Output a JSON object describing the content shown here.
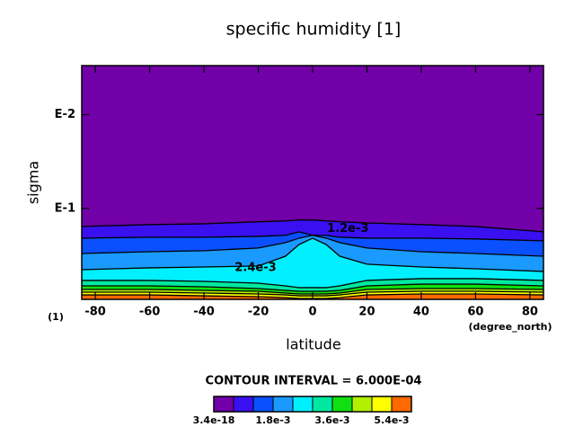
{
  "chart_data": {
    "type": "contour",
    "title": "specific humidity [1]",
    "x_label": "latitude",
    "y_label": "sigma",
    "x_unit": "(degree_north)",
    "y_unit": "(1)",
    "xlim": [
      -85,
      85
    ],
    "xticks": [
      -80,
      -60,
      -40,
      -20,
      0,
      20,
      40,
      60,
      80
    ],
    "ylim": [
      0.935,
      0.003
    ],
    "ylog": true,
    "yticks": [
      {
        "value": 0.01,
        "label": "E-2"
      },
      {
        "value": 0.1,
        "label": "E-1"
      }
    ],
    "x": [
      -85,
      -60,
      -40,
      -20,
      -10,
      -5,
      0,
      5,
      10,
      20,
      40,
      60,
      85
    ],
    "contours": [
      {
        "level": 0.0006,
        "values": [
          0.156,
          0.149,
          0.146,
          0.139,
          0.136,
          0.133,
          0.133,
          0.136,
          0.139,
          0.143,
          0.149,
          0.156,
          0.178
        ]
      },
      {
        "level": 0.0012,
        "values": [
          0.208,
          0.203,
          0.203,
          0.199,
          0.194,
          0.178,
          0.194,
          0.194,
          0.203,
          0.208,
          0.208,
          0.212,
          0.222
        ]
      },
      {
        "level": 0.0018,
        "values": [
          0.303,
          0.29,
          0.283,
          0.265,
          0.232,
          0.208,
          0.194,
          0.208,
          0.232,
          0.265,
          0.29,
          0.303,
          0.324
        ]
      },
      {
        "level": 0.0024,
        "values": [
          0.451,
          0.431,
          0.422,
          0.412,
          0.324,
          0.243,
          0.208,
          0.243,
          0.324,
          0.394,
          0.422,
          0.441,
          0.471
        ]
      },
      {
        "level": 0.003,
        "values": [
          0.587,
          0.587,
          0.601,
          0.628,
          0.671,
          0.701,
          0.701,
          0.701,
          0.671,
          0.587,
          0.562,
          0.562,
          0.587
        ]
      },
      {
        "level": 0.0036,
        "values": [
          0.671,
          0.671,
          0.686,
          0.717,
          0.75,
          0.767,
          0.767,
          0.767,
          0.75,
          0.671,
          0.643,
          0.643,
          0.671
        ]
      },
      {
        "level": 0.0042,
        "values": [
          0.733,
          0.733,
          0.75,
          0.767,
          0.801,
          0.819,
          0.819,
          0.819,
          0.801,
          0.733,
          0.717,
          0.717,
          0.733
        ]
      },
      {
        "level": 0.0048,
        "values": [
          0.784,
          0.784,
          0.801,
          0.819,
          0.838,
          0.857,
          0.857,
          0.857,
          0.838,
          0.784,
          0.767,
          0.767,
          0.784
        ]
      },
      {
        "level": 0.0054,
        "values": [
          0.838,
          0.838,
          0.857,
          0.875,
          0.895,
          0.916,
          0.916,
          0.916,
          0.895,
          0.838,
          0.819,
          0.819,
          0.838
        ]
      }
    ],
    "contour_labels": [
      {
        "text": "1.2e-3",
        "x": 13,
        "y": 0.166
      },
      {
        "text": "2.4e-3",
        "x": -21,
        "y": 0.431
      }
    ],
    "contour_interval_label": "CONTOUR INTERVAL = 6.000E-04",
    "colorbar": {
      "levels": [
        3.4e-18,
        0.0006,
        0.0012,
        0.0018,
        0.0024,
        0.003,
        0.0036,
        0.0042,
        0.0048,
        0.0054,
        0.006
      ],
      "colors": [
        "#7200a8",
        "#3a10f0",
        "#0a50ff",
        "#1a9aff",
        "#00f0ff",
        "#00e8a0",
        "#10e010",
        "#b0f000",
        "#ffff00",
        "#ff6a00"
      ],
      "ticks": [
        3.4e-18,
        {
          "value": 0.0018,
          "label": "1.8e-3"
        },
        {
          "value": 0.0036,
          "label": "3.6e-3"
        },
        {
          "value": 0.0054,
          "label": "5.4e-3"
        }
      ]
    }
  }
}
